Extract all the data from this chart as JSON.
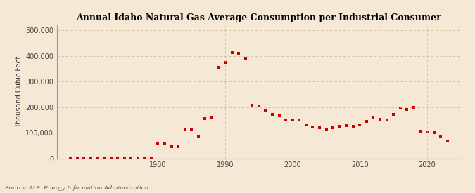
{
  "title": "Annual Idaho Natural Gas Average Consumption per Industrial Consumer",
  "ylabel": "Thousand Cubic Feet",
  "source": "Source: U.S. Energy Information Administration",
  "background_color": "#f5e9d5",
  "plot_bg_color": "#f5e9d5",
  "marker_color": "#cc0000",
  "years": [
    1967,
    1968,
    1969,
    1970,
    1971,
    1972,
    1973,
    1974,
    1975,
    1976,
    1977,
    1978,
    1979,
    1980,
    1981,
    1982,
    1983,
    1984,
    1985,
    1986,
    1987,
    1988,
    1989,
    1990,
    1991,
    1992,
    1993,
    1994,
    1995,
    1996,
    1997,
    1998,
    1999,
    2000,
    2001,
    2002,
    2003,
    2004,
    2005,
    2006,
    2007,
    2008,
    2009,
    2010,
    2011,
    2012,
    2013,
    2014,
    2015,
    2016,
    2017,
    2018,
    2019,
    2020,
    2021,
    2022,
    2023
  ],
  "values": [
    2000,
    2000,
    2000,
    2000,
    2000,
    2000,
    2000,
    2000,
    2000,
    2000,
    2000,
    2000,
    2000,
    57000,
    55000,
    44000,
    44000,
    115000,
    110000,
    85000,
    155000,
    160000,
    355000,
    375000,
    412000,
    410000,
    390000,
    207000,
    205000,
    185000,
    170000,
    165000,
    150000,
    150000,
    148000,
    130000,
    122000,
    118000,
    115000,
    120000,
    125000,
    128000,
    125000,
    130000,
    143000,
    160000,
    152000,
    150000,
    170000,
    195000,
    190000,
    200000,
    105000,
    103000,
    100000,
    85000,
    68000
  ],
  "xlim": [
    1965,
    2025
  ],
  "ylim": [
    0,
    520000
  ],
  "yticks": [
    0,
    100000,
    200000,
    300000,
    400000,
    500000
  ],
  "xticks": [
    1980,
    1990,
    2000,
    2010,
    2020
  ],
  "grid_color": "#c8b89a",
  "spine_color": "#999999",
  "title_fontsize": 9,
  "label_fontsize": 7,
  "tick_fontsize": 7,
  "source_fontsize": 6,
  "marker_size": 3,
  "figsize": [
    6.75,
    2.75
  ],
  "dpi": 100
}
